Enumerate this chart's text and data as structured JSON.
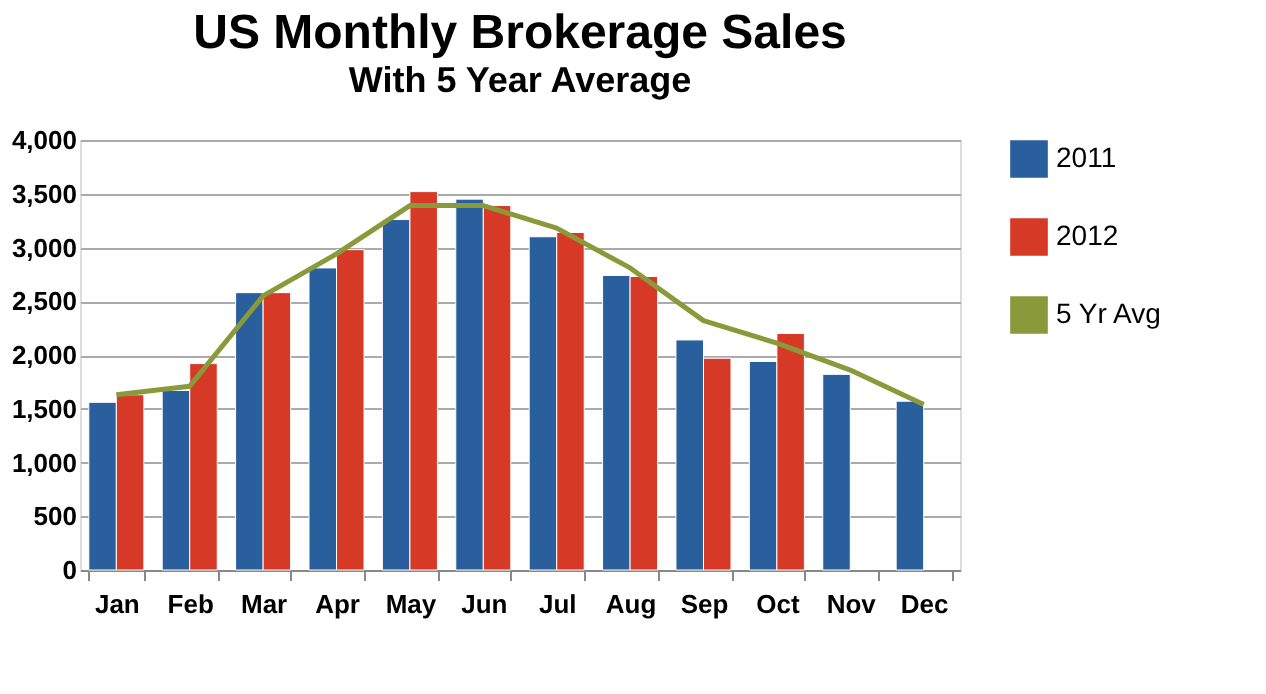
{
  "chart_data": {
    "type": "bar",
    "title": "US Monthly Brokerage Sales",
    "subtitle": "With 5 Year Average",
    "categories": [
      "Jan",
      "Feb",
      "Mar",
      "Apr",
      "May",
      "Jun",
      "Jul",
      "Aug",
      "Sep",
      "Oct",
      "Nov",
      "Dec"
    ],
    "series": [
      {
        "name": "2011",
        "color": "#2a5f9e",
        "values": [
          1560,
          1670,
          2580,
          2810,
          3260,
          3450,
          3100,
          2740,
          2140,
          1940,
          1820,
          1570
        ]
      },
      {
        "name": "2012",
        "color": "#d63a26",
        "values": [
          1630,
          1920,
          2580,
          2980,
          3520,
          3390,
          3140,
          2730,
          1970,
          2200,
          null,
          null
        ]
      },
      {
        "name": "5 Yr Avg",
        "type": "line",
        "color": "#8a9a3a",
        "values": [
          1630,
          1710,
          2550,
          2940,
          3390,
          3390,
          3180,
          2810,
          2320,
          2110,
          1860,
          1540
        ]
      }
    ],
    "ylim": [
      0,
      4000
    ],
    "yticks": [
      {
        "value": 0,
        "label": "0"
      },
      {
        "value": 500,
        "label": "500"
      },
      {
        "value": 1000,
        "label": "1,000"
      },
      {
        "value": 1500,
        "label": "1,500"
      },
      {
        "value": 2000,
        "label": "2,000"
      },
      {
        "value": 2500,
        "label": "2,500"
      },
      {
        "value": 3000,
        "label": "3,000"
      },
      {
        "value": 3500,
        "label": "3,500"
      },
      {
        "value": 4000,
        "label": "4,000"
      }
    ],
    "grid": "y",
    "legend": "right",
    "marker": "none",
    "line_style": "solid"
  }
}
